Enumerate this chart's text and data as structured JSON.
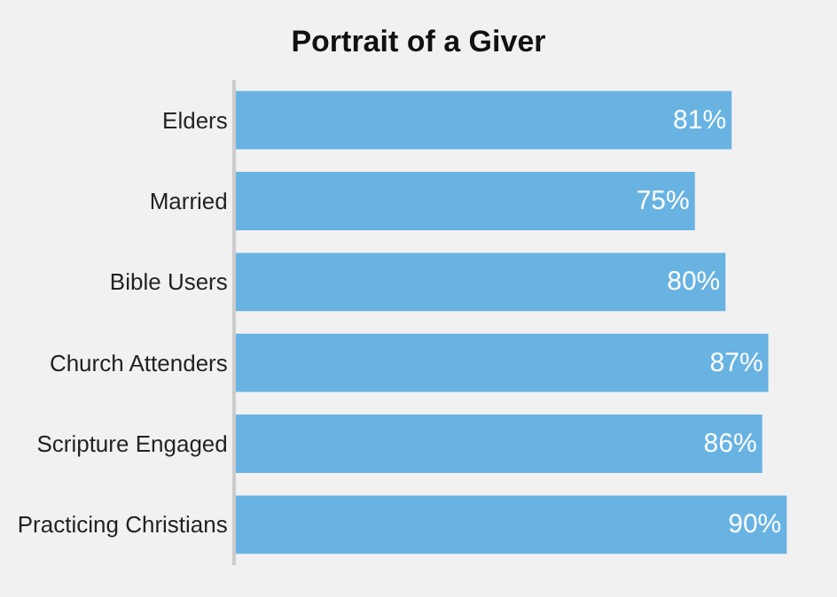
{
  "chart_data": {
    "type": "bar",
    "title": "Portrait of a Giver",
    "orientation": "horizontal",
    "categories": [
      "Elders",
      "Married",
      "Bible Users",
      "Church Attenders",
      "Scripture Engaged",
      "Practicing Christians"
    ],
    "values": [
      81,
      75,
      80,
      87,
      86,
      90
    ],
    "value_labels": [
      "81%",
      "75%",
      "80%",
      "87%",
      "86%",
      "90%"
    ],
    "color": "#69b3e3",
    "tick_labels": "y",
    "grid": false,
    "legend": false
  }
}
